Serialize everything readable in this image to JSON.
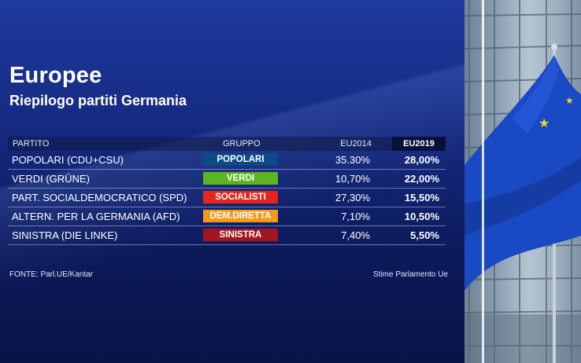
{
  "header": {
    "title": "Europee",
    "subtitle": "Riepilogo partiti Germania"
  },
  "table": {
    "columns": {
      "party": "PARTITO",
      "group": "GRUPPO",
      "y2014": "EU2014",
      "y2019": "EU2019"
    },
    "rows": [
      {
        "party": "POPOLARI (CDU+CSU)",
        "group": "POPOLARI",
        "group_color": "#0d4a86",
        "y2014": "35.30%",
        "y2019": "28,00%"
      },
      {
        "party": "VERDI (GRÜNE)",
        "group": "VERDI",
        "group_color": "#5cb51e",
        "y2014": "10,70%",
        "y2019": "22,00%"
      },
      {
        "party": "PART. SOCIALDEMOCRATICO (SPD)",
        "group": "SOCIALISTI",
        "group_color": "#e5251b",
        "y2014": "27,30%",
        "y2019": "15,50%"
      },
      {
        "party": "ALTERN. PER LA GERMANIA (AFD)",
        "group": "DEM.DIRETTA",
        "group_color": "#f39a1b",
        "y2014": "7,10%",
        "y2019": "10,50%"
      },
      {
        "party": "SINISTRA (DIE LINKE)",
        "group": "SINISTRA",
        "group_color": "#a3161d",
        "y2014": "7,40%",
        "y2019": "5,50%"
      }
    ]
  },
  "footer": {
    "source": "FONTE: Parl.UE/Kantar",
    "note": "Stime Parlamento Ue"
  },
  "colors": {
    "background": "#152a80",
    "flag": "#1a49c4",
    "star": "#f5d31f"
  },
  "icons": [
    "eu-flag",
    "building-photo"
  ]
}
